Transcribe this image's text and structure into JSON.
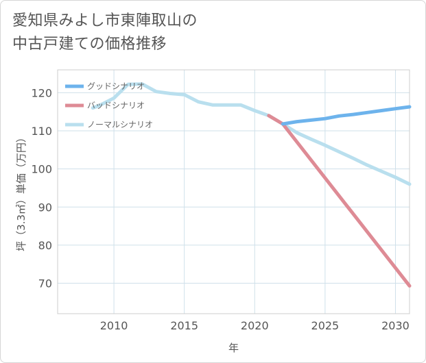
{
  "title": {
    "line1": "愛知県みよし市東陣取山の",
    "line2": "中古戸建ての価格推移"
  },
  "chart_data": {
    "type": "line",
    "xlabel": "年",
    "ylabel": "坪（3.3㎡）単価（万円）",
    "xlim": [
      2006,
      2031
    ],
    "ylim": [
      62,
      126
    ],
    "xticks": [
      2010,
      2015,
      2020,
      2025,
      2030
    ],
    "yticks": [
      70,
      80,
      90,
      100,
      110,
      120
    ],
    "grid": true,
    "legend_position": "top-left",
    "series": [
      {
        "name": "グッドシナリオ",
        "color": "#6db3ec",
        "x": [
          2022,
          2023,
          2024,
          2025,
          2026,
          2027,
          2028,
          2029,
          2030,
          2031
        ],
        "y": [
          111.8,
          112.4,
          112.8,
          113.2,
          113.9,
          114.3,
          114.8,
          115.3,
          115.8,
          116.3
        ]
      },
      {
        "name": "バッドシナリオ",
        "color": "#de8b95",
        "x": [
          2021,
          2022,
          2031
        ],
        "y": [
          114.0,
          111.8,
          69.3
        ]
      },
      {
        "name": "ノーマルシナリオ",
        "color": "#b9dfee",
        "x": [
          2008.5,
          2009,
          2010,
          2011,
          2012,
          2013,
          2014,
          2015,
          2016,
          2017,
          2018,
          2019,
          2020,
          2021,
          2022,
          2023,
          2024,
          2025,
          2026,
          2027,
          2028,
          2029,
          2030,
          2031
        ],
        "y": [
          116.0,
          116.7,
          118.6,
          122.2,
          122.3,
          120.3,
          119.8,
          119.5,
          117.6,
          116.8,
          116.8,
          116.8,
          115.3,
          114.0,
          111.8,
          109.5,
          107.8,
          106.2,
          104.5,
          102.8,
          101.0,
          99.4,
          97.8,
          96.0
        ]
      }
    ]
  }
}
